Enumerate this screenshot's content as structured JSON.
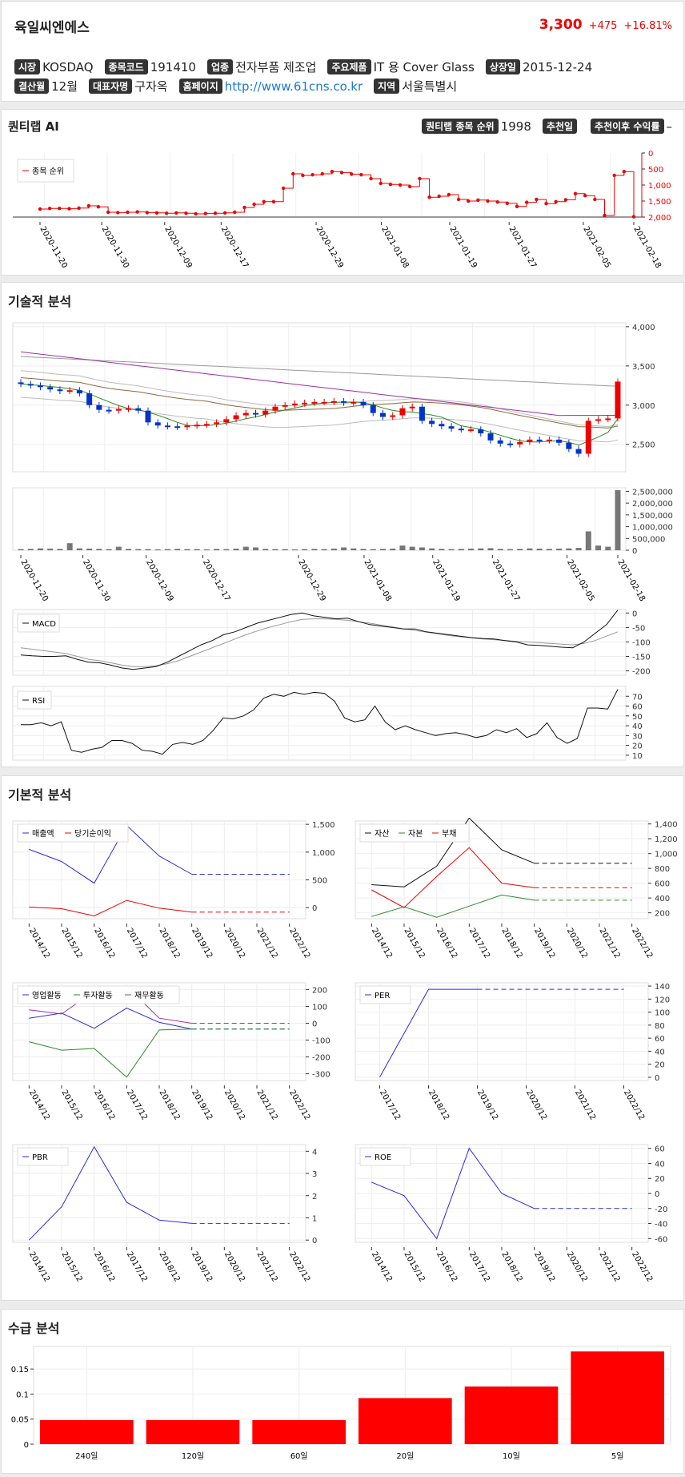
{
  "company": {
    "name": "육일씨엔에스",
    "price": "3,300",
    "change": "+475",
    "pct": "+16.81%"
  },
  "info": {
    "market_l": "시장",
    "market": "KOSDAQ",
    "code_l": "종목코드",
    "code": "191410",
    "industry_l": "업종",
    "industry": "전자부품 제조업",
    "product_l": "주요제품",
    "product": "IT 용 Cover Glass",
    "listed_l": "상장일",
    "listed": "2015-12-24",
    "fiscal_l": "결산월",
    "fiscal": "12월",
    "ceo_l": "대표자명",
    "ceo": "구자옥",
    "hp_l": "홈페이지",
    "hp": "http://www.61cns.co.kr",
    "region_l": "지역",
    "region": "서울특별시"
  },
  "ai": {
    "title": "퀀티랩 AI",
    "rank_l": "퀀티랩 종목 순위",
    "rank": "1998",
    "rec_l": "추천일",
    "rec": "",
    "ret_l": "추천이후 수익률",
    "ret": "–"
  },
  "rank_chart": {
    "legend": "종목 순위",
    "yticks": [
      "0",
      "500",
      "1,000",
      "1,500",
      "2,000"
    ],
    "ymax": 2000,
    "values": [
      1750,
      1730,
      1730,
      1740,
      1720,
      1650,
      1680,
      1850,
      1860,
      1850,
      1840,
      1860,
      1870,
      1880,
      1870,
      1880,
      1900,
      1890,
      1880,
      1870,
      1850,
      1700,
      1600,
      1520,
      1520,
      1100,
      650,
      700,
      680,
      650,
      580,
      610,
      660,
      680,
      800,
      950,
      980,
      1000,
      1050,
      800,
      1380,
      1350,
      1300,
      1450,
      1500,
      1470,
      1500,
      1530,
      1570,
      1670,
      1540,
      1450,
      1580,
      1520,
      1460,
      1270,
      1330,
      1450,
      1950,
      700,
      580,
      1990
    ]
  },
  "dates": [
    "2020-11-20",
    "2020-11-30",
    "2020-12-09",
    "2020-12-17",
    "2020-12-29",
    "2021-01-08",
    "2021-01-19",
    "2021-01-27",
    "2021-02-05",
    "2021-02-18"
  ],
  "tech": {
    "title": "기술적 분석",
    "yticks": [
      "4,000",
      "3,500",
      "3,000",
      "2,500"
    ],
    "vol_ticks": [
      "2,500,000",
      "2,000,000",
      "1,500,000",
      "1,000,000",
      "500,000",
      "0"
    ],
    "macd_l": "MACD",
    "macd_ticks": [
      "0",
      "-50",
      "-100",
      "-150",
      "-200"
    ],
    "rsi_l": "RSI",
    "rsi_ticks": [
      "70",
      "60",
      "50",
      "40",
      "30",
      "20",
      "10"
    ],
    "close": [
      3270,
      3250,
      3230,
      3200,
      3180,
      3190,
      3150,
      3000,
      2940,
      2930,
      2950,
      2960,
      2930,
      2780,
      2740,
      2730,
      2720,
      2740,
      2750,
      2760,
      2780,
      2820,
      2870,
      2900,
      2880,
      2930,
      2980,
      3000,
      3020,
      3030,
      3040,
      3040,
      3050,
      3030,
      3040,
      3000,
      2900,
      2850,
      2870,
      2960,
      2980,
      2800,
      2760,
      2730,
      2700,
      2690,
      2690,
      2640,
      2550,
      2510,
      2500,
      2530,
      2560,
      2550,
      2560,
      2520,
      2440,
      2380,
      2800,
      2820,
      2830,
      3300
    ],
    "volume": [
      50000,
      60000,
      80000,
      70000,
      60000,
      300000,
      80000,
      70000,
      60000,
      50000,
      150000,
      60000,
      50000,
      50000,
      40000,
      50000,
      60000,
      50000,
      50000,
      40000,
      60000,
      50000,
      70000,
      150000,
      120000,
      60000,
      50000,
      50000,
      40000,
      50000,
      60000,
      50000,
      70000,
      120000,
      80000,
      60000,
      50000,
      60000,
      70000,
      200000,
      150000,
      120000,
      80000,
      60000,
      50000,
      60000,
      70000,
      80000,
      90000,
      60000,
      50000,
      60000,
      80000,
      70000,
      60000,
      70000,
      80000,
      100000,
      800000,
      200000,
      150000,
      2550000
    ],
    "macd": [
      -145,
      -148,
      -150,
      -150,
      -148,
      -160,
      -170,
      -172,
      -180,
      -190,
      -195,
      -190,
      -185,
      -170,
      -150,
      -130,
      -110,
      -95,
      -75,
      -65,
      -50,
      -35,
      -25,
      -15,
      -5,
      0,
      -10,
      -15,
      -20,
      -18,
      -30,
      -40,
      -45,
      -50,
      -55,
      -55,
      -65,
      -70,
      -75,
      -80,
      -85,
      -88,
      -90,
      -95,
      -100,
      -110,
      -112,
      -115,
      -118,
      -120,
      -100,
      -70,
      -40,
      10
    ],
    "macd_sig": [
      -120,
      -125,
      -130,
      -135,
      -140,
      -150,
      -160,
      -165,
      -172,
      -180,
      -185,
      -185,
      -182,
      -175,
      -165,
      -150,
      -135,
      -120,
      -105,
      -90,
      -75,
      -62,
      -50,
      -40,
      -30,
      -22,
      -20,
      -20,
      -22,
      -25,
      -30,
      -35,
      -42,
      -48,
      -55,
      -60,
      -66,
      -72,
      -78,
      -82,
      -86,
      -90,
      -92,
      -95,
      -98,
      -100,
      -102,
      -105,
      -108,
      -110,
      -105,
      -95,
      -80,
      -65
    ],
    "rsi": [
      41,
      41,
      43,
      40,
      44,
      15,
      13,
      16,
      18,
      25,
      25,
      22,
      15,
      14,
      11,
      21,
      23,
      21,
      25,
      35,
      48,
      47,
      50,
      56,
      68,
      72,
      70,
      74,
      72,
      74,
      73,
      65,
      48,
      44,
      46,
      60,
      44,
      36,
      40,
      36,
      33,
      30,
      32,
      33,
      31,
      28,
      30,
      36,
      33,
      37,
      28,
      32,
      43,
      28,
      22,
      27,
      58,
      58,
      57,
      77
    ]
  },
  "fund": {
    "title": "기본적 분석",
    "years": [
      "2014/12",
      "2015/12",
      "2016/12",
      "2017/12",
      "2018/12",
      "2019/12",
      "2020/12",
      "2021/12",
      "2022/12"
    ],
    "c1": {
      "legend": [
        "매출액",
        "당기순이익"
      ],
      "yticks": [
        "1,500",
        "1,000",
        "500",
        "0"
      ],
      "rev": [
        1050,
        830,
        440,
        1480,
        930,
        600,
        600,
        600,
        600
      ],
      "net": [
        10,
        -20,
        -150,
        130,
        -10,
        -80,
        -80,
        -80,
        -80
      ]
    },
    "c2": {
      "legend": [
        "자산",
        "자본",
        "부채"
      ],
      "yticks": [
        "1,400",
        "1,200",
        "1,000",
        "800",
        "600",
        "400",
        "200"
      ],
      "asset": [
        580,
        550,
        830,
        1480,
        1050,
        870,
        870,
        870,
        870
      ],
      "equity": [
        150,
        280,
        140,
        290,
        440,
        370,
        370,
        370,
        370
      ],
      "debt": [
        510,
        270,
        690,
        1080,
        600,
        540,
        540,
        540,
        540
      ]
    },
    "c3": {
      "legend": [
        "영업활동",
        "투자활동",
        "재무활동"
      ],
      "yticks": [
        "200",
        "100",
        "0",
        "-100",
        "-200",
        "-300"
      ],
      "op": [
        30,
        60,
        -30,
        90,
        5,
        -35,
        -35,
        -35,
        -35
      ],
      "inv": [
        -110,
        -160,
        -150,
        -320,
        -40,
        -35,
        -35,
        -35,
        -35
      ],
      "fin": [
        80,
        55,
        190,
        220,
        30,
        0,
        0,
        0,
        0
      ]
    },
    "c4": {
      "legend": "PER",
      "years": [
        "2017/12",
        "2018/12",
        "2019/12",
        "2020/12",
        "2021/12",
        "2022/12"
      ],
      "yticks": [
        "140",
        "120",
        "100",
        "80",
        "60",
        "40",
        "20",
        "0"
      ],
      "vals": [
        0,
        135,
        135,
        135,
        135,
        135
      ]
    },
    "c5": {
      "legend": "PBR",
      "yticks": [
        "4",
        "3",
        "2",
        "1",
        "0"
      ],
      "vals": [
        0,
        1.5,
        4.2,
        1.7,
        0.9,
        0.75,
        0.75,
        0.75,
        0.75
      ]
    },
    "c6": {
      "legend": "ROE",
      "yticks": [
        "60",
        "40",
        "20",
        "0",
        "-20",
        "-40",
        "-60"
      ],
      "vals": [
        15,
        -3,
        -60,
        60,
        0,
        -20,
        -20,
        -20,
        -20
      ]
    }
  },
  "supply": {
    "title": "수급 분석",
    "categories": [
      "240일",
      "120일",
      "60일",
      "20일",
      "10일",
      "5일"
    ],
    "values": [
      0.048,
      0.048,
      0.048,
      0.092,
      0.115,
      0.185
    ],
    "yticks": [
      "0.15",
      "0.1",
      "0.05",
      "0"
    ]
  }
}
